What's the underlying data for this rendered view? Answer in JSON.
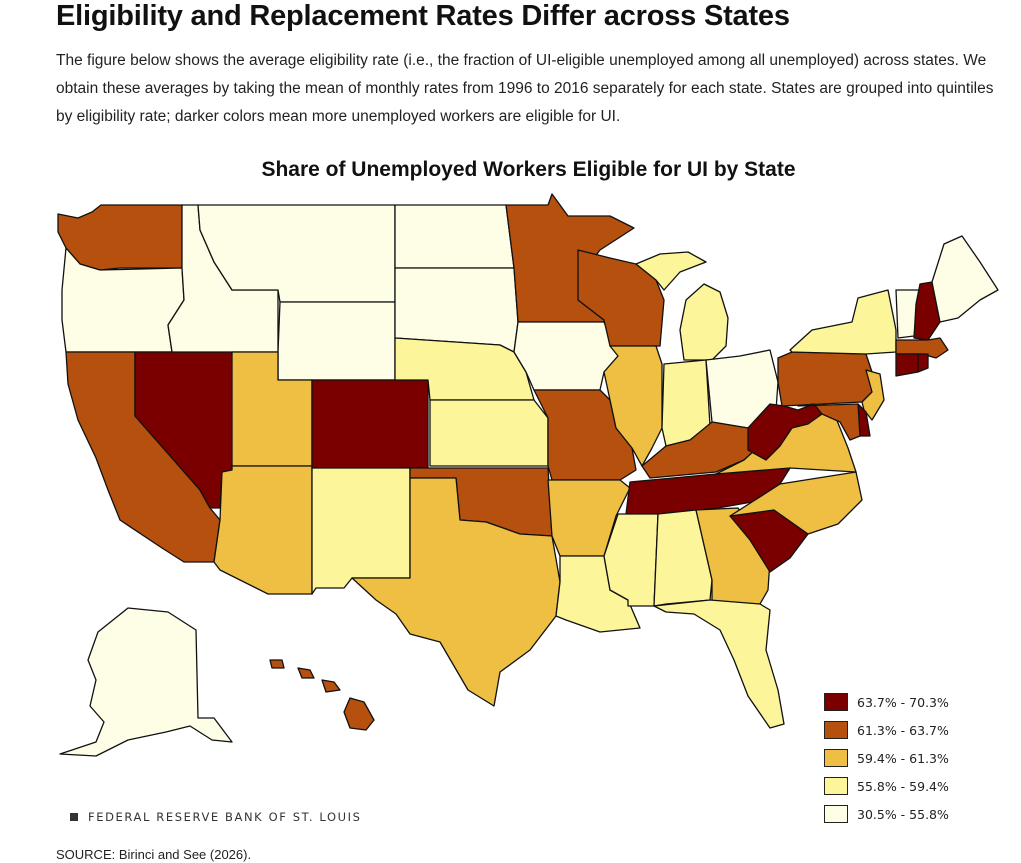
{
  "headline": "Eligibility and Replacement Rates Differ across States",
  "intro": "The figure below shows the average eligibility rate (i.e., the fraction of UI-eligible unemployed among all unemployed) across states. We obtain these averages by taking the mean of monthly rates from 1996 to 2016 separately for each state. States are grouped into quintiles by eligibility rate; darker colors mean more unemployed workers are eligible for UI.",
  "map": {
    "title": "Share of Unemployed Workers Eligible for UI by State",
    "legend": [
      {
        "label": "63.7% - 70.3%",
        "color": "#7a0000"
      },
      {
        "label": "61.3% - 63.7%",
        "color": "#b5500f"
      },
      {
        "label": "59.4% - 61.3%",
        "color": "#eebf42"
      },
      {
        "label": "55.8% - 59.4%",
        "color": "#fdf59a"
      },
      {
        "label": "30.5% - 55.8%",
        "color": "#fefde5"
      }
    ],
    "states": {
      "WA": 2,
      "OR": 5,
      "CA": 2,
      "NV": 1,
      "ID": 5,
      "MT": 5,
      "WY": 5,
      "UT": 3,
      "AZ": 3,
      "CO": 1,
      "NM": 4,
      "ND": 5,
      "SD": 5,
      "NE": 4,
      "KS": 4,
      "OK": 2,
      "TX": 3,
      "MN": 2,
      "IA": 5,
      "MO": 2,
      "AR": 3,
      "LA": 4,
      "WI": 2,
      "IL": 3,
      "MI": 4,
      "IN": 4,
      "OH": 5,
      "KY": 2,
      "TN": 1,
      "MS": 4,
      "AL": 4,
      "GA": 3,
      "FL": 4,
      "SC": 1,
      "NC": 3,
      "VA": 3,
      "WV": 1,
      "PA": 2,
      "NY": 4,
      "VT": 5,
      "NH": 1,
      "ME": 5,
      "MA": 2,
      "RI": 1,
      "CT": 1,
      "NJ": 3,
      "DE": 1,
      "MD": 2,
      "AK": 5,
      "HI": 2
    }
  },
  "brand": "FEDERAL RESERVE BANK OF ST. LOUIS",
  "source": "SOURCE: Birinci and See (2026)."
}
